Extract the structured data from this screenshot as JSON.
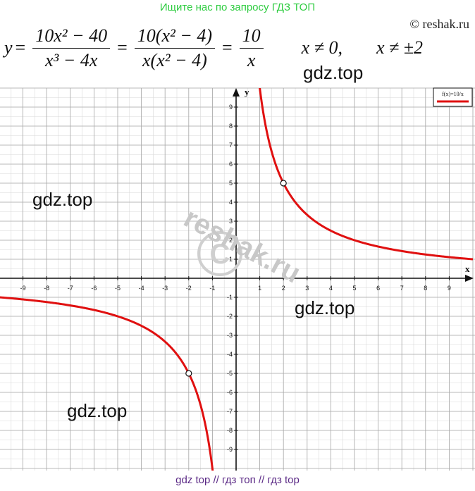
{
  "banner_top": "Ищите нас по запросу ГДЗ ТОП",
  "copyright": "© reshak.ru",
  "formula": {
    "lhs": "y",
    "eq": "=",
    "frac1_num": "10x² − 40",
    "frac1_den": "x³ − 4x",
    "frac2_num": "10(x² − 4)",
    "frac2_den": "x(x² − 4)",
    "frac3_num": "10",
    "frac3_den": "x",
    "cond1": "x ≠ 0,",
    "cond2": "x ≠ ±2"
  },
  "watermarks": [
    "gdz.top",
    "gdz.top",
    "gdz.top",
    "gdz.top"
  ],
  "diag_watermark": "reshak.ru",
  "banner_bottom": "gdz top  //  гдз топ  //  гдз top",
  "chart_data": {
    "type": "line",
    "function": "10/x",
    "legend": "f(x)=10/x",
    "xlabel": "x",
    "ylabel": "y",
    "xlim": [
      -10,
      10
    ],
    "ylim": [
      -10,
      10
    ],
    "grid": true,
    "legend_position": "top-right",
    "series": [
      {
        "name": "f(x)=10/x",
        "color": "#e01010",
        "x": [
          -10,
          -8,
          -6,
          -5,
          -4,
          -3,
          -2,
          -1.25,
          -1.05
        ],
        "y": [
          -1,
          -1.25,
          -1.67,
          -2,
          -2.5,
          -3.33,
          -5,
          -8,
          -9.5
        ]
      },
      {
        "name": "f(x)=10/x",
        "color": "#e01010",
        "x": [
          1.05,
          1.25,
          2,
          3,
          4,
          5,
          6,
          8,
          10
        ],
        "y": [
          9.5,
          8,
          5,
          3.33,
          2.5,
          2,
          1.67,
          1.25,
          1
        ]
      }
    ],
    "open_points": [
      {
        "x": 2,
        "y": 5
      },
      {
        "x": -2,
        "y": -5
      }
    ],
    "x_ticks": [
      -9,
      -8,
      -7,
      -6,
      -5,
      -4,
      -3,
      -2,
      -1,
      1,
      2,
      3,
      4,
      5,
      6,
      7,
      8,
      9
    ],
    "y_ticks": [
      -9,
      -8,
      -7,
      -6,
      -5,
      -4,
      -3,
      -2,
      -1,
      1,
      2,
      3,
      4,
      5,
      6,
      7,
      8,
      9
    ]
  }
}
